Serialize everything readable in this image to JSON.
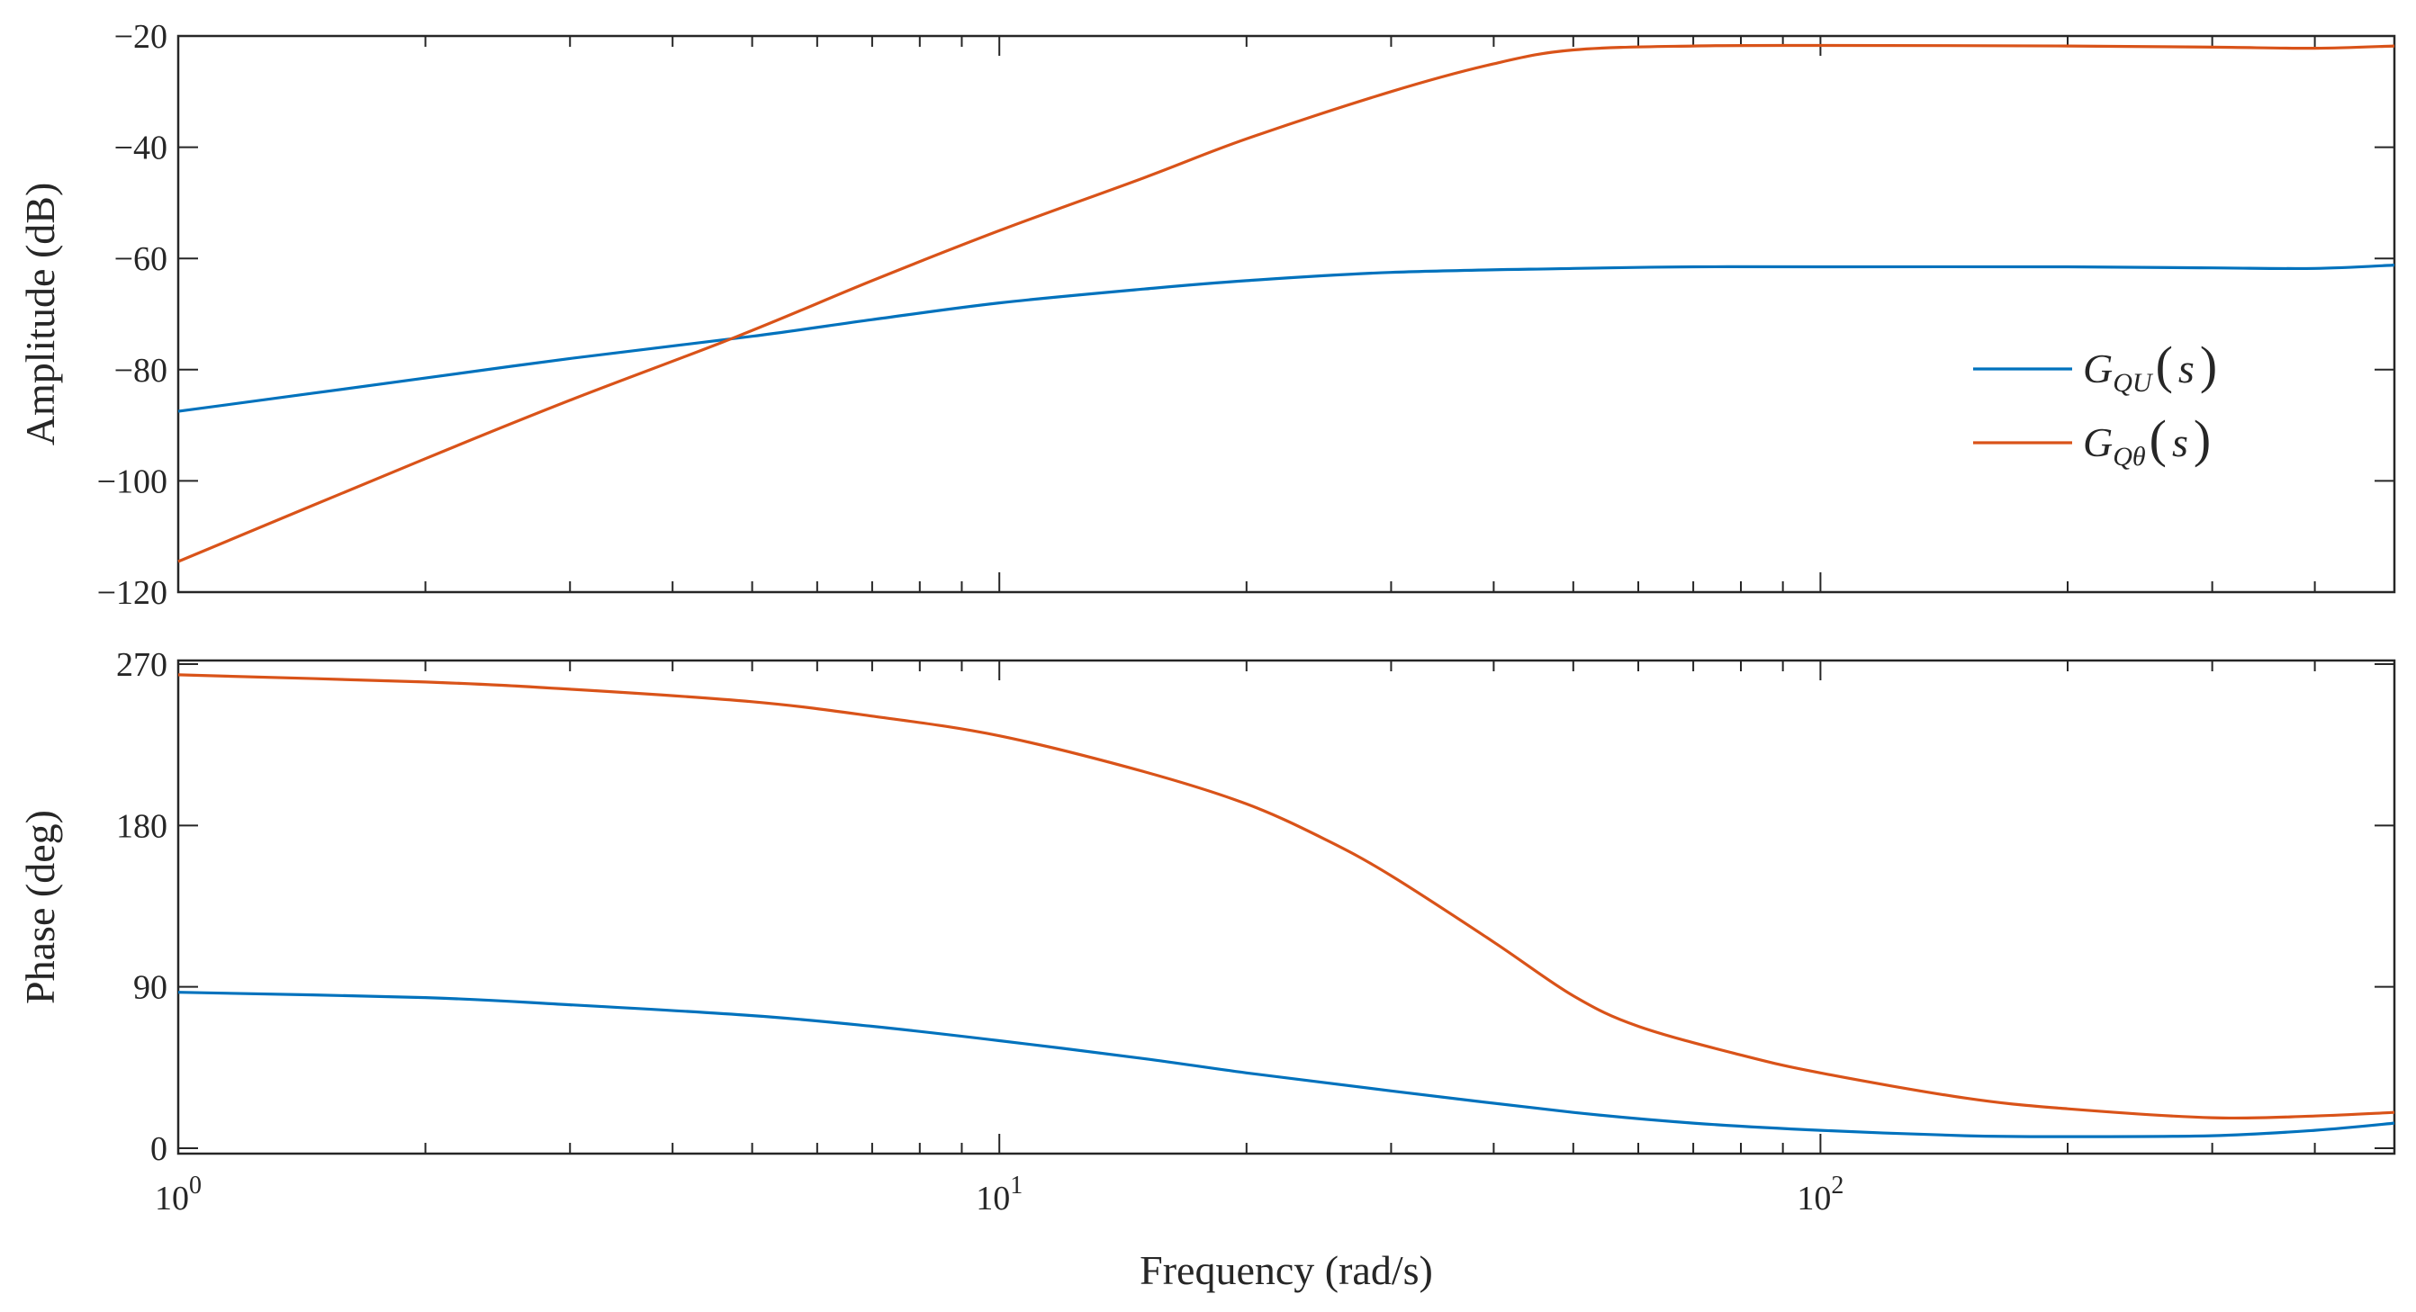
{
  "chart_data": [
    {
      "type": "line",
      "panel": "amplitude",
      "title": "",
      "xlabel": "",
      "ylabel": "Amplitude (dB)",
      "xscale": "log",
      "xlim": [
        1,
        500
      ],
      "ylim": [
        -120,
        -20
      ],
      "yticks": [
        -120,
        -100,
        -80,
        -60,
        -40,
        -20
      ],
      "ytick_labels": [
        "−120",
        "−100",
        "−80",
        "−60",
        "−40",
        "−20"
      ],
      "grid": false,
      "legend_position": "right",
      "series": [
        {
          "name": "G_QU(s)",
          "color": "#0072BD",
          "x": [
            1,
            2,
            3,
            5,
            7,
            10,
            15,
            20,
            30,
            50,
            70,
            100,
            200,
            300,
            400,
            500
          ],
          "y": [
            -87.5,
            -81.5,
            -78,
            -74,
            -71,
            -68,
            -65.5,
            -64,
            -62.5,
            -61.8,
            -61.5,
            -61.5,
            -61.5,
            -61.7,
            -61.8,
            -61.2
          ]
        },
        {
          "name": "G_Qθ(s)",
          "color": "#D95319",
          "x": [
            1,
            2,
            3,
            4.8,
            7,
            10,
            15,
            20,
            30,
            40,
            50,
            70,
            100,
            200,
            300,
            400,
            500
          ],
          "y": [
            -114.5,
            -96,
            -85.5,
            -74,
            -64,
            -55,
            -45.5,
            -38.5,
            -30,
            -25,
            -22.5,
            -21.8,
            -21.7,
            -21.8,
            -22,
            -22.2,
            -21.8
          ]
        }
      ]
    },
    {
      "type": "line",
      "panel": "phase",
      "title": "",
      "xlabel": "Frequency (rad/s)",
      "ylabel": "Phase (deg)",
      "xscale": "log",
      "xlim": [
        1,
        500
      ],
      "ylim": [
        -3,
        272
      ],
      "yticks": [
        0,
        90,
        180,
        270
      ],
      "ytick_labels": [
        "0",
        "90",
        "180",
        "270"
      ],
      "xtick_labels": [
        {
          "base": "10",
          "exp": "0"
        },
        {
          "base": "10",
          "exp": "1"
        },
        {
          "base": "10",
          "exp": "2"
        }
      ],
      "grid": false,
      "series": [
        {
          "name": "G_QU(s)",
          "color": "#0072BD",
          "x": [
            1,
            2,
            3,
            5,
            7,
            10,
            15,
            20,
            30,
            50,
            70,
            100,
            150,
            200,
            300,
            400,
            500
          ],
          "y": [
            87,
            84,
            80,
            74,
            68,
            60,
            50,
            42,
            32,
            20,
            14,
            10,
            7,
            6.5,
            7,
            10,
            14
          ]
        },
        {
          "name": "G_Qθ(s)",
          "color": "#D95319",
          "x": [
            1,
            2,
            3,
            5,
            7,
            10,
            15,
            20,
            25,
            30,
            40,
            50,
            60,
            80,
            100,
            150,
            200,
            300,
            400,
            500
          ],
          "y": [
            264,
            260,
            256,
            249,
            241,
            230,
            210,
            192,
            172,
            152,
            115,
            85,
            68,
            52,
            42,
            28,
            22,
            17,
            18,
            20
          ]
        }
      ]
    }
  ],
  "legend": {
    "items": [
      {
        "base": "G",
        "sub": "QU",
        "arg": "s",
        "color": "#0072BD"
      },
      {
        "base": "G",
        "sub": "Qθ",
        "arg": "s",
        "color": "#D95319"
      }
    ]
  }
}
